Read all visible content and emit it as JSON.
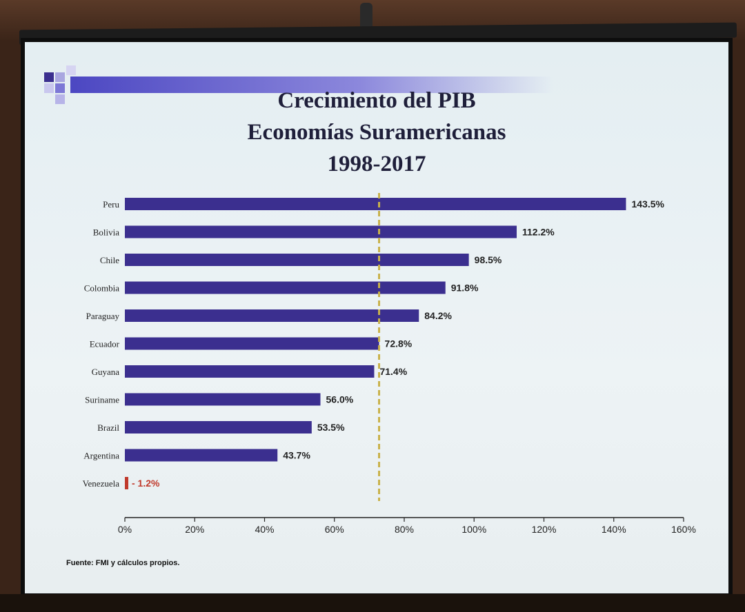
{
  "slide": {
    "title_lines": [
      "Crecimiento del PIB",
      "Economías Suramericanas",
      "1998-2017"
    ],
    "source": "Fuente: FMI y cálculos propios."
  },
  "colors": {
    "bar": "#3b2f8f",
    "bar_negative": "#c0392b",
    "reference_line": "#c9b24a",
    "header_band": "#5a55c8"
  },
  "chart_data": {
    "type": "bar",
    "orientation": "horizontal",
    "categories": [
      "Peru",
      "Bolivia",
      "Chile",
      "Colombia",
      "Paraguay",
      "Ecuador",
      "Guyana",
      "Suriname",
      "Brazil",
      "Argentina",
      "Venezuela"
    ],
    "values": [
      143.5,
      112.2,
      98.5,
      91.8,
      84.2,
      72.8,
      71.4,
      56.0,
      53.5,
      43.7,
      -1.2
    ],
    "data_labels": [
      "143.5%",
      "112.2%",
      "98.5%",
      "91.8%",
      "84.2%",
      "72.8%",
      "71.4%",
      "56.0%",
      "53.5%",
      "43.7%",
      "- 1.2%"
    ],
    "xlim": [
      0,
      160
    ],
    "xticks": [
      0,
      20,
      40,
      60,
      80,
      100,
      120,
      140,
      160
    ],
    "xtick_labels": [
      "0%",
      "20%",
      "40%",
      "60%",
      "80%",
      "100%",
      "120%",
      "140%",
      "160%"
    ],
    "reference_line": 72.8,
    "grid": false,
    "legend": "none"
  }
}
